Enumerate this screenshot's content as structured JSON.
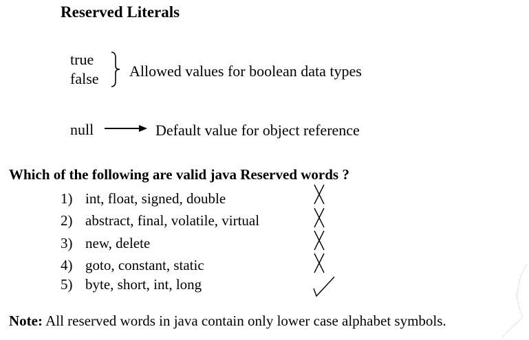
{
  "heading": "Reserved Literals",
  "literals": {
    "boolean_values": [
      "true",
      "false"
    ],
    "boolean_description": "Allowed values for boolean data types",
    "null_literal": "null",
    "null_description": "Default value for object reference"
  },
  "question": "Which of the following are valid java Reserved words ?",
  "options": [
    {
      "number": "1)",
      "text": "int, float, signed, double",
      "mark": "cross-icon"
    },
    {
      "number": "2)",
      "text": "abstract, final, volatile, virtual",
      "mark": "cross-icon"
    },
    {
      "number": "3)",
      "text": "new, delete",
      "mark": "cross-icon"
    },
    {
      "number": "4)",
      "text": "goto, constant, static",
      "mark": "cross-icon"
    },
    {
      "number": "5)",
      "text": "byte, short, int, long",
      "mark": "check-icon"
    }
  ],
  "note": {
    "label": "Note:",
    "text": " All reserved words in java contain only lower case alphabet symbols."
  }
}
